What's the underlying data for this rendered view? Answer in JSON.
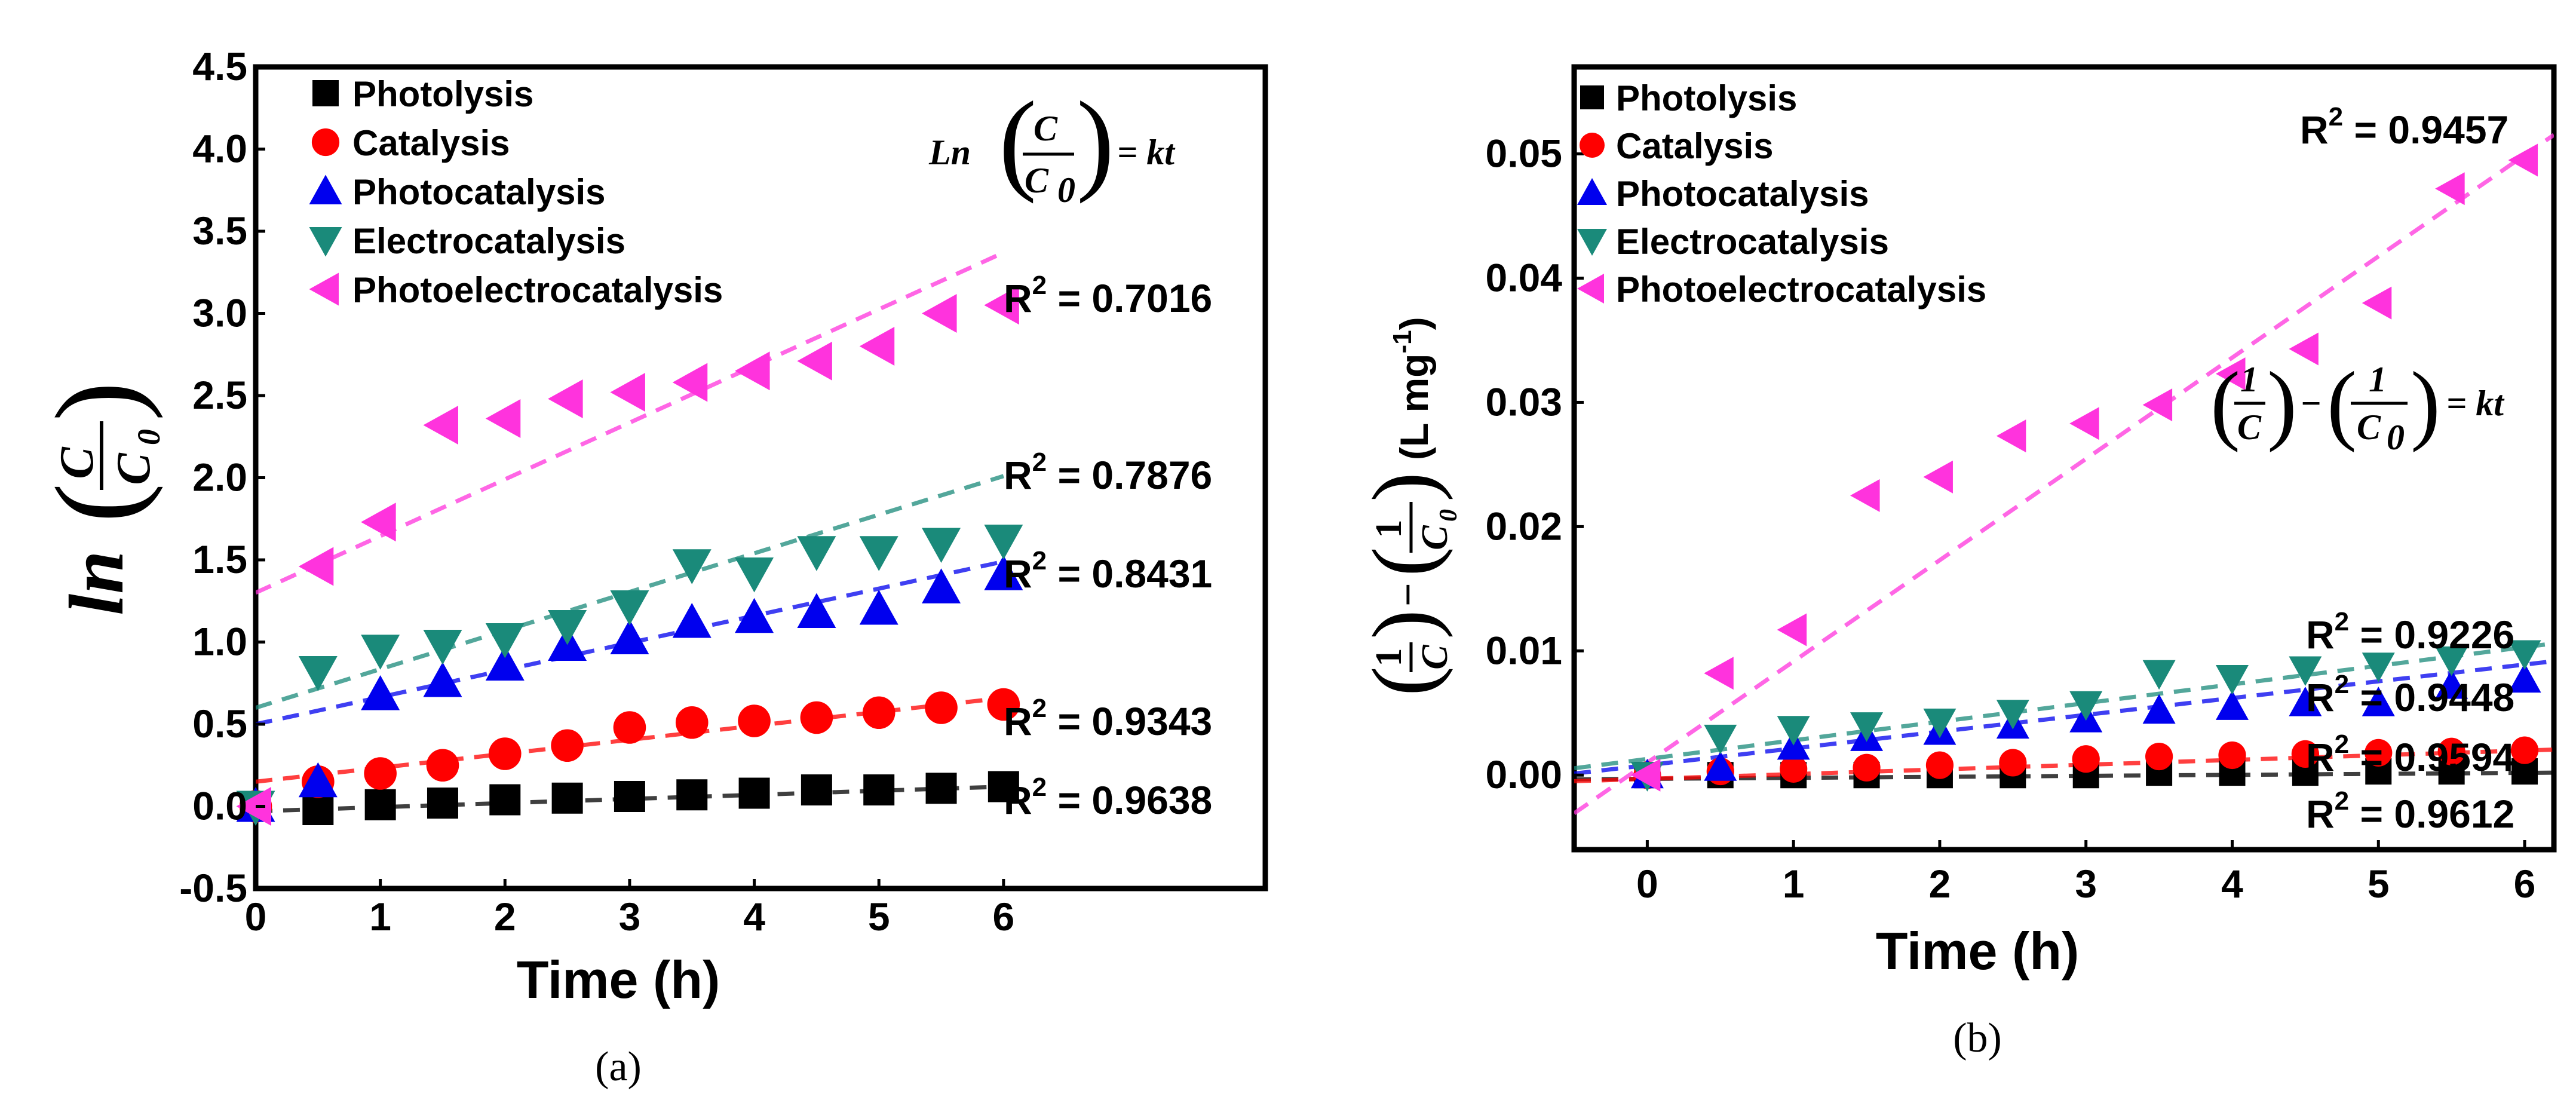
{
  "chart_data": [
    {
      "type": "scatter",
      "panel_label": "(a)",
      "xlabel": "Time (h)",
      "ylabel": "ln(C/C0)",
      "ylabel_parts": {
        "fn": "ln",
        "num": "C",
        "den": "C",
        "den_sub": "0"
      },
      "xlim": [
        0,
        8.1
      ],
      "ylim": [
        -0.5,
        4.5
      ],
      "xticks": [
        "0",
        "1",
        "2",
        "3",
        "4",
        "5",
        "6"
      ],
      "yticks": [
        "-0.5",
        "0.0",
        "0.5",
        "1.0",
        "1.5",
        "2.0",
        "2.5",
        "3.0",
        "3.5",
        "4.0",
        "4.5"
      ],
      "equation": {
        "fn": "Ln",
        "num": "C",
        "den": "C",
        "den_sub": "0",
        "rhs": "= kt"
      },
      "series": [
        {
          "name": "Photolysis",
          "color": "#000000",
          "marker": "square",
          "x": [
            0,
            0.5,
            1,
            1.5,
            2,
            2.5,
            3,
            3.5,
            4,
            4.5,
            5,
            5.5,
            6
          ],
          "y": [
            0.0,
            -0.02,
            0.01,
            0.02,
            0.04,
            0.05,
            0.06,
            0.07,
            0.08,
            0.1,
            0.1,
            0.11,
            0.12
          ],
          "fit": [
            -0.03,
            0.025
          ],
          "r2": "0.9638"
        },
        {
          "name": "Catalysis",
          "color": "#ff0000",
          "marker": "circle",
          "x": [
            0,
            0.5,
            1,
            1.5,
            2,
            2.5,
            3,
            3.5,
            4,
            4.5,
            5,
            5.5,
            6
          ],
          "y": [
            0.0,
            0.15,
            0.2,
            0.25,
            0.32,
            0.37,
            0.48,
            0.51,
            0.52,
            0.54,
            0.57,
            0.6,
            0.62
          ],
          "fit": [
            0.15,
            0.085
          ],
          "r2": "0.9343"
        },
        {
          "name": "Photocatalysis",
          "color": "#0000ee",
          "marker": "triangle-up",
          "x": [
            0,
            0.5,
            1,
            1.5,
            2,
            2.5,
            3,
            3.5,
            4,
            4.5,
            5,
            5.5,
            6
          ],
          "y": [
            0.0,
            0.15,
            0.68,
            0.76,
            0.86,
            0.98,
            1.02,
            1.12,
            1.15,
            1.18,
            1.2,
            1.33,
            1.41
          ],
          "fit": [
            0.5,
            0.165
          ],
          "r2": "0.8431"
        },
        {
          "name": "Electrocatalysis",
          "color": "#1a8a7a",
          "marker": "triangle-down",
          "x": [
            0,
            0.5,
            1,
            1.5,
            2,
            2.5,
            3,
            3.5,
            4,
            4.5,
            5,
            5.5,
            6
          ],
          "y": [
            0.0,
            0.82,
            0.95,
            0.98,
            1.02,
            1.1,
            1.22,
            1.47,
            1.42,
            1.55,
            1.55,
            1.6,
            1.62
          ],
          "fit": [
            0.6,
            0.235
          ],
          "r2": "0.7876"
        },
        {
          "name": "Photoelectrocatalysis",
          "color": "#ff33dd",
          "marker": "triangle-left",
          "x": [
            0,
            0.5,
            1,
            1.5,
            2,
            2.5,
            3,
            3.5,
            4,
            4.5,
            5,
            5.5,
            6
          ],
          "y": [
            0.0,
            1.46,
            1.73,
            2.32,
            2.36,
            2.48,
            2.52,
            2.58,
            2.65,
            2.71,
            2.8,
            3.0,
            3.05
          ],
          "fit": [
            1.3,
            0.345
          ],
          "r2": "0.7016"
        }
      ]
    },
    {
      "type": "scatter",
      "panel_label": "(b)",
      "xlabel": "Time (h)",
      "ylabel": "(1/C) − (1/C0) (L mg-1)",
      "ylabel_parts": {
        "one": "1",
        "c": "C",
        "minus": "−",
        "sub": "0",
        "unit": "(L mg",
        "unit_sup": "-1",
        "unit_end": ")"
      },
      "xlim": [
        -0.5,
        6.2
      ],
      "ylim": [
        -0.006,
        0.057
      ],
      "xticks": [
        "0",
        "1",
        "2",
        "3",
        "4",
        "5",
        "6"
      ],
      "yticks": [
        "0.00",
        "0.01",
        "0.02",
        "0.03",
        "0.04",
        "0.05"
      ],
      "equation": {
        "one": "1",
        "c": "C",
        "minus": "−",
        "sub": "0",
        "rhs": "= kt"
      },
      "series": [
        {
          "name": "Photolysis",
          "color": "#000000",
          "marker": "square",
          "x": [
            0,
            0.5,
            1,
            1.5,
            2,
            2.5,
            3,
            3.5,
            4,
            4.5,
            5,
            5.5,
            6
          ],
          "y": [
            0.0,
            0.0,
            0.0,
            0.0,
            0.0,
            0.0,
            0.0,
            0.0002,
            0.0002,
            0.0002,
            0.0003,
            0.0003,
            0.0003
          ],
          "fit": [
            -0.0003,
            8e-05
          ],
          "r2": "0.9612"
        },
        {
          "name": "Catalysis",
          "color": "#ff0000",
          "marker": "circle",
          "x": [
            0,
            0.5,
            1,
            1.5,
            2,
            2.5,
            3,
            3.5,
            4,
            4.5,
            5,
            5.5,
            6
          ],
          "y": [
            0.0,
            0.0003,
            0.0005,
            0.0006,
            0.0008,
            0.001,
            0.0013,
            0.0015,
            0.0016,
            0.0017,
            0.0018,
            0.0019,
            0.002
          ],
          "fit": [
            -0.0003,
            0.00038
          ],
          "r2": "0.9594"
        },
        {
          "name": "Photocatalysis",
          "color": "#0000ee",
          "marker": "triangle-up",
          "x": [
            0,
            0.5,
            1,
            1.5,
            2,
            2.5,
            3,
            3.5,
            4,
            4.5,
            5,
            5.5,
            6
          ],
          "y": [
            0.0,
            0.0006,
            0.0023,
            0.003,
            0.0035,
            0.004,
            0.0045,
            0.0052,
            0.0055,
            0.0058,
            0.0058,
            0.0072,
            0.0077
          ],
          "fit": [
            0.0008,
            0.00135
          ],
          "r2": "0.9448"
        },
        {
          "name": "Electrocatalysis",
          "color": "#1a8a7a",
          "marker": "triangle-down",
          "x": [
            0,
            0.5,
            1,
            1.5,
            2,
            2.5,
            3,
            3.5,
            4,
            4.5,
            5,
            5.5,
            6
          ],
          "y": [
            0.0,
            0.003,
            0.0037,
            0.004,
            0.0043,
            0.005,
            0.0057,
            0.0082,
            0.0078,
            0.0085,
            0.0088,
            0.0093,
            0.0098
          ],
          "fit": [
            0.0013,
            0.0015
          ],
          "r2": "0.9226"
        },
        {
          "name": "Photoelectrocatalysis",
          "color": "#ff33dd",
          "marker": "triangle-left",
          "x": [
            0,
            0.5,
            1,
            1.5,
            2,
            2.5,
            3,
            3.5,
            4,
            4.5,
            5,
            5.5,
            6
          ],
          "y": [
            0.0,
            0.0082,
            0.0117,
            0.0225,
            0.024,
            0.0273,
            0.0283,
            0.0298,
            0.0323,
            0.0343,
            0.038,
            0.0472,
            0.0495
          ],
          "fit": [
            0.001,
            0.00815
          ],
          "r2": "0.9457"
        }
      ]
    }
  ]
}
